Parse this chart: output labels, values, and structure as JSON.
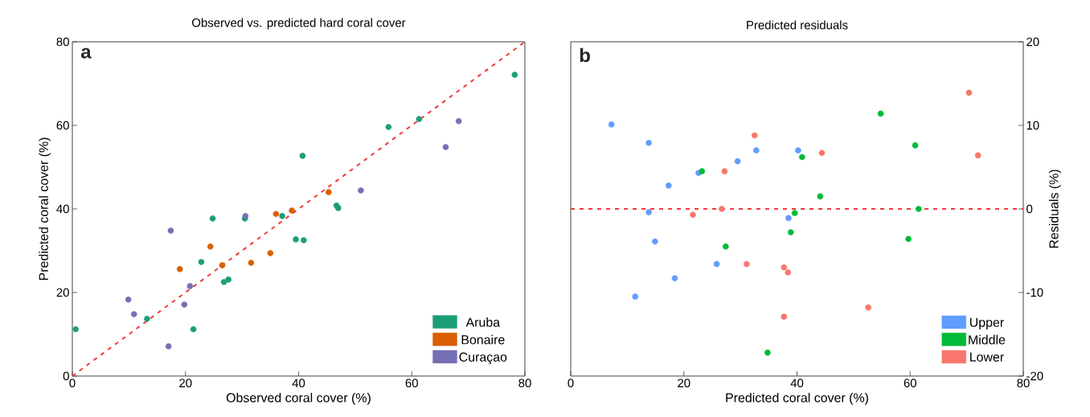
{
  "chart_data": [
    {
      "type": "scatter",
      "title": "Observed vs. predicted hard coral cover",
      "xlabel": "Observed coral cover (%)",
      "ylabel": "Predicted coral cover (%)",
      "annotations": [
        "a"
      ],
      "xlim": [
        0,
        80
      ],
      "ylim": [
        0,
        80
      ],
      "xticks": [
        0,
        20,
        40,
        60,
        80
      ],
      "yticks": [
        0,
        20,
        40,
        60,
        80
      ],
      "legend": "bottom right",
      "series": [
        {
          "name": "Aruba",
          "color": "#1b9e77",
          "x": [
            0.6,
            13.2,
            21.4,
            22.8,
            24.8,
            26.8,
            27.6,
            30.5,
            37.1,
            39.5,
            40.9,
            40.7,
            46.7,
            47.0,
            55.9,
            61.3,
            78.2
          ],
          "values": [
            11.2,
            13.7,
            11.2,
            27.3,
            37.7,
            22.5,
            23.1,
            37.7,
            38.3,
            32.7,
            32.5,
            52.7,
            40.8,
            40.2,
            59.6,
            61.5,
            72.1
          ]
        },
        {
          "name": "Bonaire",
          "color": "#d95f02",
          "x": [
            19.0,
            24.4,
            26.5,
            31.6,
            35.0,
            36.0,
            38.8,
            45.3
          ],
          "values": [
            25.6,
            31.0,
            26.5,
            27.1,
            29.4,
            38.8,
            39.6,
            44.0
          ]
        },
        {
          "name": "Curaçao",
          "color": "#7570b3",
          "x": [
            9.9,
            10.9,
            17.4,
            17.0,
            19.8,
            20.8,
            30.6,
            51.0,
            66.0,
            68.3
          ],
          "values": [
            18.3,
            14.8,
            34.8,
            7.1,
            17.1,
            21.5,
            38.3,
            44.4,
            54.8,
            61.0
          ]
        },
        {
          "type": "line",
          "color": "#f03c3c",
          "line_style": "dashed",
          "marker": "none",
          "x": [
            0,
            80
          ],
          "values": [
            0,
            80
          ]
        }
      ]
    },
    {
      "type": "scatter",
      "title": "Predicted residuals",
      "xlabel": "Predicted coral cover (%)",
      "ylabel": "Residuals (%)",
      "annotations": [
        "b"
      ],
      "xlim": [
        0,
        80
      ],
      "ylim": [
        -20,
        20
      ],
      "xticks": [
        0,
        20,
        40,
        60,
        80
      ],
      "yticks": [
        -20,
        -10,
        0,
        10,
        20
      ],
      "legend": "bottom right",
      "ref_lines": [
        {
          "axis": "y",
          "value": 0,
          "color": "#f03c3c",
          "line_style": "dashed"
        }
      ],
      "series": [
        {
          "name": "Upper",
          "color": "#619cff",
          "x": [
            7.2,
            13.8,
            17.3,
            13.8,
            14.9,
            11.4,
            18.4,
            22.6,
            29.5,
            32.8,
            25.8,
            38.5,
            40.2
          ],
          "values": [
            10.1,
            7.9,
            2.8,
            -0.4,
            -3.9,
            -10.5,
            -8.3,
            4.3,
            5.7,
            7.0,
            -6.6,
            -1.1,
            7.0
          ]
        },
        {
          "name": "Middle",
          "color": "#00ba38",
          "x": [
            23.2,
            27.4,
            34.8,
            38.9,
            39.6,
            40.9,
            44.1,
            54.8,
            60.9,
            61.5,
            59.7
          ],
          "values": [
            4.5,
            -4.5,
            -17.2,
            -2.8,
            -0.5,
            6.2,
            1.5,
            11.4,
            7.6,
            0.0,
            -3.6
          ]
        },
        {
          "name": "Lower",
          "color": "#f8766d",
          "x": [
            32.5,
            27.2,
            26.7,
            21.6,
            31.1,
            37.7,
            38.4,
            37.7,
            44.4,
            52.6,
            70.4,
            72.0
          ],
          "values": [
            8.8,
            4.5,
            0.0,
            -0.7,
            -6.6,
            -7.0,
            -7.6,
            -12.9,
            6.7,
            -11.8,
            13.9,
            6.4
          ]
        }
      ]
    }
  ]
}
